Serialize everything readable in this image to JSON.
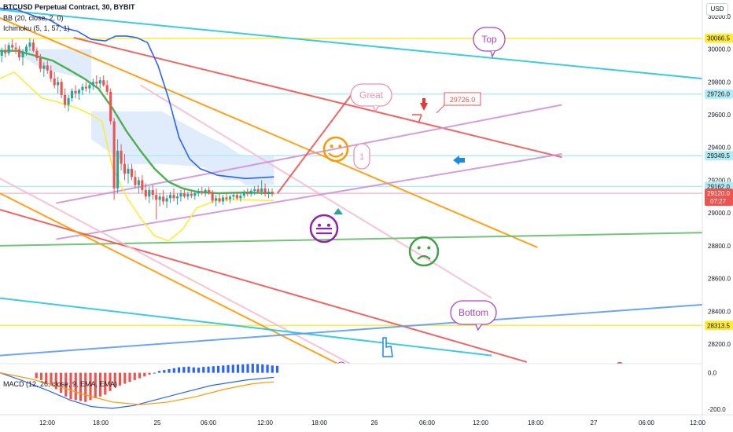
{
  "header": {
    "symbol_line": "BTCUSD Perpetual Contract, 30, BYBIT",
    "bb_line": "BB (20, close, 2, 0)",
    "ichimoku_line": "Ichimoku (5, 1, 57, 1)",
    "macd_line": "MACD (12, 26, close, 9, EMA, EMA)",
    "currency_button": "USD"
  },
  "colors": {
    "background": "#ffffff",
    "bull_candle": "#26a69a",
    "bear_candle": "#ef5350",
    "bb_upper": "#2962ff",
    "bb_basis": "#4caf50",
    "bb_lower": "#ffeb3b",
    "cloud": "#d6e4fb",
    "macd_line": "#2962ff",
    "signal_line": "#ff9800"
  },
  "chart_data": {
    "type": "candlestick",
    "symbol": "BTCUSD",
    "interval": "30",
    "exchange": "BYBIT",
    "y_axis": {
      "ticks": [
        28200.0,
        28400.0,
        28600.0,
        28800.0,
        29000.0,
        29200.0,
        29400.0,
        29600.0,
        29800.0,
        30000.0,
        30200.0
      ],
      "tick_labels": [
        "28200.0",
        "28400.0",
        "28600.0",
        "28800.0",
        "29000.0",
        "29200.0",
        "29400.0",
        "29600.0",
        "29800.0",
        "30000.0",
        "30200.0"
      ],
      "range": [
        28080,
        30300
      ]
    },
    "x_axis": {
      "tick_labels": [
        "12:00",
        "18:00",
        "25",
        "06:00",
        "12:00",
        "18:00",
        "26",
        "06:00",
        "12:00",
        "18:00",
        "27",
        "06:00",
        "12:00"
      ],
      "range_bars": [
        0,
        200
      ]
    },
    "price_labels": [
      {
        "value": 30066.5,
        "text": "30066.5",
        "color": "#ffeb3b"
      },
      {
        "value": 29726.0,
        "text": "29726.0",
        "color": "#b2ebf2"
      },
      {
        "value": 29349.5,
        "text": "29349.5",
        "color": "#b2ebf2"
      },
      {
        "value": 29162.0,
        "text": "29162.0",
        "color": "#b2ebf2"
      },
      {
        "value": 29120.0,
        "text": "29120.0",
        "sub": "07:27",
        "color": "#ef5350"
      },
      {
        "value": 28313.5,
        "text": "28313.5",
        "color": "#ffeb3b"
      }
    ],
    "candles": [
      [
        29960,
        30010,
        29920,
        29990
      ],
      [
        29990,
        30030,
        29950,
        29975
      ],
      [
        29975,
        30040,
        29960,
        30025
      ],
      [
        30025,
        30060,
        29990,
        30010
      ],
      [
        30010,
        30040,
        29970,
        30000
      ],
      [
        30000,
        30020,
        29930,
        29950
      ],
      [
        29950,
        30000,
        29900,
        29985
      ],
      [
        29985,
        30030,
        29960,
        30015
      ],
      [
        30015,
        30066,
        29990,
        30040
      ],
      [
        30040,
        30060,
        29980,
        29990
      ],
      [
        29990,
        30010,
        29930,
        29945
      ],
      [
        29945,
        29970,
        29860,
        29880
      ],
      [
        29880,
        29920,
        29830,
        29900
      ],
      [
        29900,
        29930,
        29850,
        29870
      ],
      [
        29870,
        29900,
        29800,
        29820
      ],
      [
        29820,
        29860,
        29760,
        29780
      ],
      [
        29780,
        29830,
        29730,
        29800
      ],
      [
        29800,
        29820,
        29700,
        29720
      ],
      [
        29720,
        29760,
        29640,
        29660
      ],
      [
        29660,
        29720,
        29620,
        29700
      ],
      [
        29700,
        29760,
        29680,
        29745
      ],
      [
        29745,
        29780,
        29700,
        29730
      ],
      [
        29730,
        29760,
        29690,
        29750
      ],
      [
        29750,
        29790,
        29720,
        29770
      ],
      [
        29770,
        29800,
        29740,
        29760
      ],
      [
        29760,
        29790,
        29730,
        29780
      ],
      [
        29780,
        29820,
        29750,
        29800
      ],
      [
        29800,
        29840,
        29770,
        29790
      ],
      [
        29790,
        29830,
        29760,
        29810
      ],
      [
        29810,
        29840,
        29770,
        29780
      ],
      [
        29780,
        29810,
        29720,
        29740
      ],
      [
        29740,
        29760,
        29540,
        29560
      ],
      [
        29560,
        29580,
        29080,
        29150
      ],
      [
        29150,
        29450,
        29120,
        29380
      ],
      [
        29380,
        29420,
        29260,
        29300
      ],
      [
        29300,
        29360,
        29200,
        29240
      ],
      [
        29240,
        29300,
        29180,
        29270
      ],
      [
        29270,
        29300,
        29200,
        29220
      ],
      [
        29220,
        29260,
        29150,
        29170
      ],
      [
        29170,
        29220,
        29120,
        29200
      ],
      [
        29200,
        29230,
        29120,
        29140
      ],
      [
        29140,
        29180,
        29080,
        29100
      ],
      [
        29100,
        29160,
        29060,
        29140
      ],
      [
        29140,
        29170,
        29080,
        29110
      ],
      [
        29110,
        29150,
        28960,
        29080
      ],
      [
        29080,
        29120,
        29040,
        29100
      ],
      [
        29100,
        29140,
        29050,
        29070
      ],
      [
        29070,
        29110,
        29030,
        29090
      ],
      [
        29090,
        29130,
        29060,
        29110
      ],
      [
        29110,
        29150,
        29070,
        29090
      ],
      [
        29090,
        29120,
        29050,
        29100
      ],
      [
        29100,
        29140,
        29070,
        29120
      ],
      [
        29120,
        29150,
        29090,
        29100
      ],
      [
        29100,
        29130,
        29080,
        29115
      ],
      [
        29115,
        29140,
        29090,
        29105
      ],
      [
        29105,
        29130,
        29080,
        29120
      ],
      [
        29120,
        29150,
        29100,
        29130
      ],
      [
        29130,
        29160,
        29110,
        29125
      ],
      [
        29125,
        29150,
        29100,
        29140
      ],
      [
        29140,
        29160,
        29110,
        29120
      ],
      [
        29120,
        29140,
        29060,
        29075
      ],
      [
        29075,
        29110,
        29040,
        29090
      ],
      [
        29090,
        29120,
        29060,
        29070
      ],
      [
        29070,
        29110,
        29050,
        29095
      ],
      [
        29095,
        29120,
        29070,
        29085
      ],
      [
        29085,
        29110,
        29060,
        29100
      ],
      [
        29100,
        29130,
        29080,
        29110
      ],
      [
        29110,
        29130,
        29080,
        29090
      ],
      [
        29090,
        29120,
        29070,
        29105
      ],
      [
        29105,
        29140,
        29090,
        29125
      ],
      [
        29125,
        29150,
        29100,
        29115
      ],
      [
        29115,
        29150,
        29100,
        29135
      ],
      [
        29135,
        29165,
        29110,
        29145
      ],
      [
        29145,
        29170,
        29120,
        29130
      ],
      [
        29130,
        29200,
        29110,
        29150
      ],
      [
        29150,
        29180,
        29100,
        29115
      ],
      [
        29115,
        29150,
        29090,
        29130
      ],
      [
        29130,
        29150,
        29100,
        29120
      ]
    ],
    "bb_upper": [
      [
        0,
        30250
      ],
      [
        5,
        30240
      ],
      [
        10,
        30200
      ],
      [
        14,
        30180
      ],
      [
        18,
        30130
      ],
      [
        22,
        30110
      ],
      [
        26,
        30060
      ],
      [
        30,
        30050
      ],
      [
        33,
        30080
      ],
      [
        36,
        30080
      ],
      [
        39,
        30070
      ],
      [
        42,
        30040
      ],
      [
        45,
        29900
      ],
      [
        48,
        29700
      ],
      [
        51,
        29460
      ],
      [
        54,
        29330
      ],
      [
        57,
        29270
      ],
      [
        62,
        29230
      ],
      [
        70,
        29210
      ],
      [
        78,
        29220
      ]
    ],
    "bb_basis": [
      [
        0,
        29990
      ],
      [
        5,
        29990
      ],
      [
        10,
        29960
      ],
      [
        15,
        29930
      ],
      [
        20,
        29870
      ],
      [
        24,
        29820
      ],
      [
        28,
        29760
      ],
      [
        32,
        29640
      ],
      [
        36,
        29500
      ],
      [
        40,
        29380
      ],
      [
        44,
        29270
      ],
      [
        48,
        29190
      ],
      [
        52,
        29150
      ],
      [
        56,
        29130
      ],
      [
        62,
        29120
      ],
      [
        70,
        29125
      ],
      [
        78,
        29120
      ]
    ],
    "bb_lower": [
      [
        0,
        29820
      ],
      [
        4,
        29860
      ],
      [
        8,
        29780
      ],
      [
        12,
        29700
      ],
      [
        16,
        29680
      ],
      [
        22,
        29640
      ],
      [
        26,
        29600
      ],
      [
        29,
        29560
      ],
      [
        32,
        29280
      ],
      [
        36,
        29100
      ],
      [
        40,
        28970
      ],
      [
        44,
        28860
      ],
      [
        48,
        28830
      ],
      [
        52,
        28900
      ],
      [
        56,
        29030
      ],
      [
        62,
        29080
      ],
      [
        70,
        29080
      ],
      [
        78,
        29075
      ]
    ],
    "cloud": [
      [
        6,
        30000,
        29960
      ],
      [
        12,
        30000,
        29880
      ],
      [
        24,
        30000,
        29820
      ],
      [
        26,
        30000,
        29760
      ],
      [
        26,
        29620,
        29450
      ],
      [
        36,
        29620,
        29300
      ],
      [
        46,
        29620,
        29300
      ],
      [
        52,
        29550,
        29290
      ],
      [
        58,
        29480,
        29280
      ],
      [
        64,
        29420,
        29200
      ],
      [
        68,
        29360,
        29200
      ],
      [
        70,
        29350,
        29170
      ],
      [
        78,
        29350,
        29170
      ]
    ],
    "trendlines": [
      {
        "color": "#26c6da",
        "points": [
          [
            0,
            30240
          ],
          [
            200,
            29820
          ]
        ]
      },
      {
        "color": "#ef5350",
        "points": [
          [
            21,
            30070
          ],
          [
            160,
            29340
          ]
        ]
      },
      {
        "color": "#ff9800",
        "points": [
          [
            0,
            30190
          ],
          [
            153,
            28790
          ]
        ]
      },
      {
        "color": "#f8bbd0",
        "points": [
          [
            40,
            29780
          ],
          [
            140,
            28480
          ]
        ]
      },
      {
        "color": "#ce93d8",
        "points": [
          [
            16,
            29060
          ],
          [
            160,
            29660
          ]
        ]
      },
      {
        "color": "#ce93d8",
        "points": [
          [
            16,
            28840
          ],
          [
            160,
            29360
          ]
        ]
      },
      {
        "color": "#66bb6a",
        "points": [
          [
            0,
            28800
          ],
          [
            200,
            28880
          ]
        ]
      },
      {
        "color": "#ef5350",
        "points": [
          [
            0,
            29020
          ],
          [
            150,
            28090
          ]
        ]
      },
      {
        "color": "#ff9800",
        "points": [
          [
            0,
            29120
          ],
          [
            110,
            27930
          ]
        ]
      },
      {
        "color": "#f8bbd0",
        "points": [
          [
            0,
            29210
          ],
          [
            120,
            27850
          ]
        ]
      },
      {
        "color": "#26c6da",
        "points": [
          [
            0,
            28480
          ],
          [
            140,
            28130
          ]
        ]
      },
      {
        "color": "#5c9bf6",
        "points": [
          [
            0,
            28130
          ],
          [
            200,
            28440
          ]
        ]
      },
      {
        "color": "#ef5350",
        "points": [
          [
            79,
            29120
          ],
          [
            100,
            29720
          ]
        ]
      }
    ],
    "hlines": [
      {
        "value": 30066.5,
        "color": "#ffeb3b"
      },
      {
        "value": 29726.0,
        "color": "#b2ebf2"
      },
      {
        "value": 29349.5,
        "color": "#b2ebf2"
      },
      {
        "value": 29162.0,
        "color": "#b2ebf2"
      },
      {
        "value": 29120.0,
        "color": "#f8bbd0"
      },
      {
        "value": 28313.5,
        "color": "#ffeb3b"
      }
    ],
    "annotations": {
      "top": "Top",
      "great": "Great",
      "bottom": "Bottom",
      "one": "1",
      "price_box": "29726.0"
    },
    "macd": {
      "y_ticks": [
        0.0,
        -200.0
      ],
      "tick_labels": [
        "0.0",
        "-200.0"
      ],
      "range": [
        -230,
        50
      ],
      "histogram": [
        -30,
        -40,
        -55,
        -70,
        -90,
        -110,
        -130,
        -145,
        -150,
        -155,
        -160,
        -150,
        -140,
        -130,
        -120,
        -100,
        -80,
        -70,
        -60,
        -50,
        -40,
        -30,
        -20,
        -10,
        0,
        10,
        15,
        20,
        25,
        30,
        32,
        34,
        30,
        28,
        32,
        34,
        36,
        38,
        40,
        42,
        44,
        45,
        46,
        48,
        50,
        48,
        46,
        44,
        40,
        38
      ],
      "macd_line": [
        [
          0,
          0
        ],
        [
          6,
          -40
        ],
        [
          14,
          -100
        ],
        [
          20,
          -150
        ],
        [
          26,
          -185
        ],
        [
          32,
          -195
        ],
        [
          38,
          -180
        ],
        [
          44,
          -150
        ],
        [
          52,
          -110
        ],
        [
          60,
          -70
        ],
        [
          70,
          -40
        ],
        [
          78,
          -25
        ]
      ],
      "signal_line": [
        [
          0,
          0
        ],
        [
          8,
          -30
        ],
        [
          16,
          -70
        ],
        [
          24,
          -120
        ],
        [
          32,
          -160
        ],
        [
          40,
          -175
        ],
        [
          48,
          -160
        ],
        [
          56,
          -130
        ],
        [
          64,
          -90
        ],
        [
          72,
          -60
        ],
        [
          78,
          -50
        ]
      ]
    }
  }
}
